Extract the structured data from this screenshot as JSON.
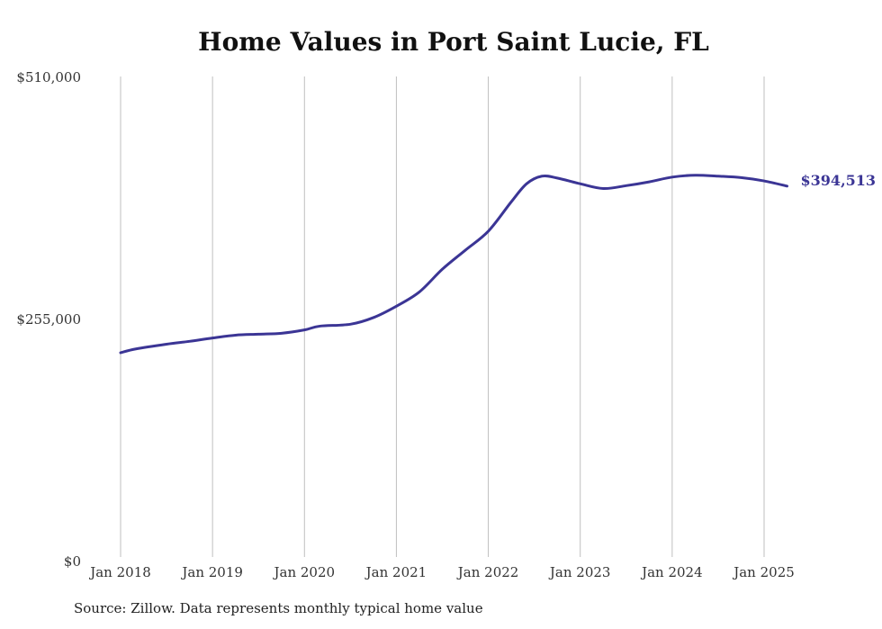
{
  "chart_data": {
    "type": "line",
    "title": "Home Values in Port Saint Lucie, FL",
    "source": "Source: Zillow. Data represents monthly typical home value",
    "xlabel": "",
    "ylabel": "",
    "ylim": [
      0,
      510000
    ],
    "y_ticks": [
      {
        "value": 0,
        "label": "$0"
      },
      {
        "value": 255000,
        "label": "$255,000"
      },
      {
        "value": 510000,
        "label": "$510,000"
      }
    ],
    "x_ticks": [
      {
        "value": "2018-01",
        "label": "Jan 2018"
      },
      {
        "value": "2019-01",
        "label": "Jan 2019"
      },
      {
        "value": "2020-01",
        "label": "Jan 2020"
      },
      {
        "value": "2021-01",
        "label": "Jan 2021"
      },
      {
        "value": "2022-01",
        "label": "Jan 2022"
      },
      {
        "value": "2023-01",
        "label": "Jan 2023"
      },
      {
        "value": "2024-01",
        "label": "Jan 2024"
      },
      {
        "value": "2025-01",
        "label": "Jan 2025"
      }
    ],
    "xlim": [
      "2018-01",
      "2025-04"
    ],
    "grid": "vertical",
    "series": [
      {
        "color": "#3b3595",
        "end_label": "$394,513",
        "points": [
          {
            "x": "2018-01",
            "y": 219000
          },
          {
            "x": "2018-03",
            "y": 223000
          },
          {
            "x": "2018-07",
            "y": 228000
          },
          {
            "x": "2018-10",
            "y": 231000
          },
          {
            "x": "2019-01",
            "y": 234500
          },
          {
            "x": "2019-04",
            "y": 237500
          },
          {
            "x": "2019-07",
            "y": 238500
          },
          {
            "x": "2019-10",
            "y": 239500
          },
          {
            "x": "2020-01",
            "y": 243000
          },
          {
            "x": "2020-03",
            "y": 247000
          },
          {
            "x": "2020-07",
            "y": 249000
          },
          {
            "x": "2020-10",
            "y": 256000
          },
          {
            "x": "2021-01",
            "y": 268000
          },
          {
            "x": "2021-04",
            "y": 283000
          },
          {
            "x": "2021-07",
            "y": 307000
          },
          {
            "x": "2021-10",
            "y": 327000
          },
          {
            "x": "2022-01",
            "y": 347000
          },
          {
            "x": "2022-04",
            "y": 378000
          },
          {
            "x": "2022-06",
            "y": 397000
          },
          {
            "x": "2022-08",
            "y": 405000
          },
          {
            "x": "2022-10",
            "y": 403000
          },
          {
            "x": "2023-01",
            "y": 397000
          },
          {
            "x": "2023-04",
            "y": 392000
          },
          {
            "x": "2023-07",
            "y": 395000
          },
          {
            "x": "2023-10",
            "y": 399000
          },
          {
            "x": "2024-01",
            "y": 404000
          },
          {
            "x": "2024-04",
            "y": 406000
          },
          {
            "x": "2024-07",
            "y": 405000
          },
          {
            "x": "2024-10",
            "y": 403500
          },
          {
            "x": "2025-01",
            "y": 400000
          },
          {
            "x": "2025-04",
            "y": 394513
          }
        ]
      }
    ]
  }
}
